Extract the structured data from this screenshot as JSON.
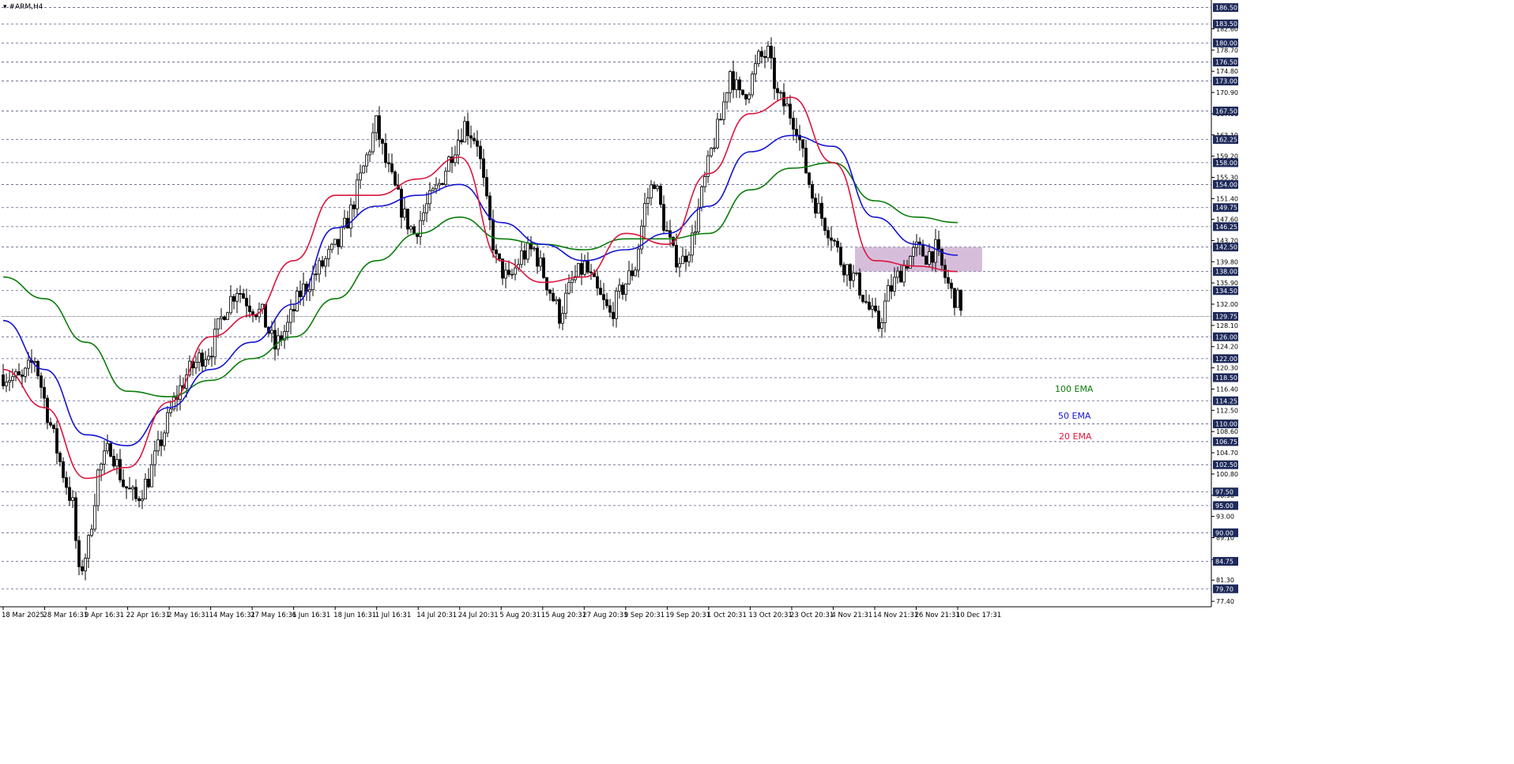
{
  "symbol_header": "#ARM,H4",
  "colors": {
    "background": "#ffffff",
    "grid": "#1e2a5a",
    "bull_body": "#ffffff",
    "bear_body": "#000000",
    "wick": "#000000",
    "ema20": "#dc143c",
    "ema50": "#1414d2",
    "ema100": "#0a7d0a",
    "price_label_bg": "#1e2a5a",
    "price_label_text": "#ffffff",
    "zone_fill": "#c8a8cf"
  },
  "chart_data": {
    "type": "candlestick",
    "title": "#ARM,H4",
    "ylim": [
      76.4,
      187.6
    ],
    "grid": true,
    "grid_style": "dashed",
    "price_scale_ticks": [
      "77.40",
      "81.30",
      "85.10",
      "89.10",
      "93.00",
      "96.90",
      "100.80",
      "104.70",
      "108.60",
      "112.50",
      "116.40",
      "120.30",
      "124.20",
      "128.10",
      "132.00",
      "135.90",
      "139.80",
      "143.70",
      "147.60",
      "151.40",
      "155.30",
      "159.20",
      "163.10",
      "167.00",
      "170.90",
      "174.80",
      "178.70",
      "182.60"
    ],
    "horizontal_levels": [
      186.5,
      183.5,
      180.0,
      176.5,
      173.0,
      167.5,
      162.25,
      158.0,
      154.0,
      149.75,
      146.25,
      142.5,
      138.0,
      134.5,
      129.75,
      126.0,
      122.0,
      118.5,
      114.25,
      110.0,
      106.75,
      102.5,
      97.5,
      95.0,
      90.0,
      84.75,
      79.7
    ],
    "current_price": 129.75,
    "time_labels": [
      "18 Mar 2025",
      "28 Mar 16:31",
      "9 Apr 16:31",
      "22 Apr 16:31",
      "2 May 16:31",
      "14 May 16:31",
      "27 May 16:31",
      "6 Jun 16:31",
      "18 Jun 16:31",
      "1 Jul 16:31",
      "14 Jul 20:31",
      "24 Jul 20:31",
      "5 Aug 20:31",
      "15 Aug 20:31",
      "27 Aug 20:31",
      "9 Sep 20:31",
      "19 Sep 20:31",
      "1 Oct 20:31",
      "13 Oct 20:31",
      "23 Oct 20:31",
      "4 Nov 21:31",
      "14 Nov 21:31",
      "26 Nov 21:31",
      "10 Dec 17:31"
    ],
    "price_path": [
      [
        0,
        119
      ],
      [
        6,
        118
      ],
      [
        10,
        122
      ],
      [
        14,
        112
      ],
      [
        18,
        103
      ],
      [
        22,
        95
      ],
      [
        24,
        82
      ],
      [
        27,
        88
      ],
      [
        30,
        101
      ],
      [
        34,
        106
      ],
      [
        38,
        99
      ],
      [
        42,
        96
      ],
      [
        46,
        100
      ],
      [
        50,
        107
      ],
      [
        54,
        114
      ],
      [
        58,
        119
      ],
      [
        62,
        122
      ],
      [
        66,
        124
      ],
      [
        70,
        131
      ],
      [
        74,
        135
      ],
      [
        78,
        132
      ],
      [
        82,
        130
      ],
      [
        86,
        124
      ],
      [
        90,
        128
      ],
      [
        94,
        134
      ],
      [
        98,
        137
      ],
      [
        102,
        140
      ],
      [
        106,
        143
      ],
      [
        110,
        149
      ],
      [
        114,
        157
      ],
      [
        118,
        165
      ],
      [
        121,
        158
      ],
      [
        124,
        153
      ],
      [
        127,
        148
      ],
      [
        130,
        145
      ],
      [
        134,
        150
      ],
      [
        138,
        154
      ],
      [
        142,
        160
      ],
      [
        146,
        165
      ],
      [
        150,
        162
      ],
      [
        153,
        150
      ],
      [
        156,
        140
      ],
      [
        160,
        136
      ],
      [
        164,
        141
      ],
      [
        168,
        142
      ],
      [
        172,
        136
      ],
      [
        176,
        130
      ],
      [
        180,
        136
      ],
      [
        184,
        139
      ],
      [
        188,
        134
      ],
      [
        192,
        130
      ],
      [
        196,
        135
      ],
      [
        200,
        139
      ],
      [
        203,
        150
      ],
      [
        206,
        155
      ],
      [
        209,
        147
      ],
      [
        212,
        141
      ],
      [
        215,
        140
      ],
      [
        218,
        144
      ],
      [
        221,
        152
      ],
      [
        224,
        160
      ],
      [
        227,
        166
      ],
      [
        230,
        175
      ],
      [
        233,
        170
      ],
      [
        236,
        172
      ],
      [
        239,
        177
      ],
      [
        242,
        178
      ],
      [
        245,
        170
      ],
      [
        248,
        168
      ],
      [
        251,
        165
      ],
      [
        253,
        159
      ],
      [
        256,
        152
      ],
      [
        259,
        148
      ],
      [
        262,
        145
      ],
      [
        265,
        140
      ],
      [
        268,
        138
      ],
      [
        271,
        135
      ],
      [
        274,
        131
      ],
      [
        277,
        128
      ],
      [
        280,
        134
      ],
      [
        283,
        137
      ],
      [
        286,
        140
      ],
      [
        289,
        142
      ],
      [
        292,
        141
      ],
      [
        295,
        142
      ],
      [
        298,
        137
      ],
      [
        300,
        134
      ],
      [
        303,
        132
      ]
    ],
    "series": [
      {
        "name": "100 EMA",
        "values": [
          137,
          133,
          125,
          116,
          115,
          118,
          122,
          126,
          133,
          140,
          145,
          148,
          144,
          143,
          142,
          144,
          144,
          145,
          153,
          157,
          158,
          151,
          148,
          147
        ]
      },
      {
        "name": "50 EMA",
        "values": [
          129,
          120,
          108,
          106,
          113,
          120,
          125,
          132,
          146,
          150,
          152,
          154,
          147,
          143,
          140,
          142,
          145,
          150,
          160,
          163,
          161,
          148,
          143,
          141
        ]
      },
      {
        "name": "20 EMA",
        "values": [
          120,
          113,
          100,
          102,
          114,
          126,
          130,
          140,
          152,
          152,
          155,
          159,
          140,
          136,
          137,
          145,
          143,
          156,
          167,
          170,
          158,
          140,
          139,
          138
        ]
      }
    ],
    "ema_legend": [
      "100 EMA",
      "50 EMA",
      "20 EMA"
    ],
    "highlight_zone": {
      "y_range": [
        138.0,
        142.5
      ],
      "x_range_time_label_span": [
        "4 Nov 21:31",
        "10 Dec 17:31"
      ]
    }
  }
}
